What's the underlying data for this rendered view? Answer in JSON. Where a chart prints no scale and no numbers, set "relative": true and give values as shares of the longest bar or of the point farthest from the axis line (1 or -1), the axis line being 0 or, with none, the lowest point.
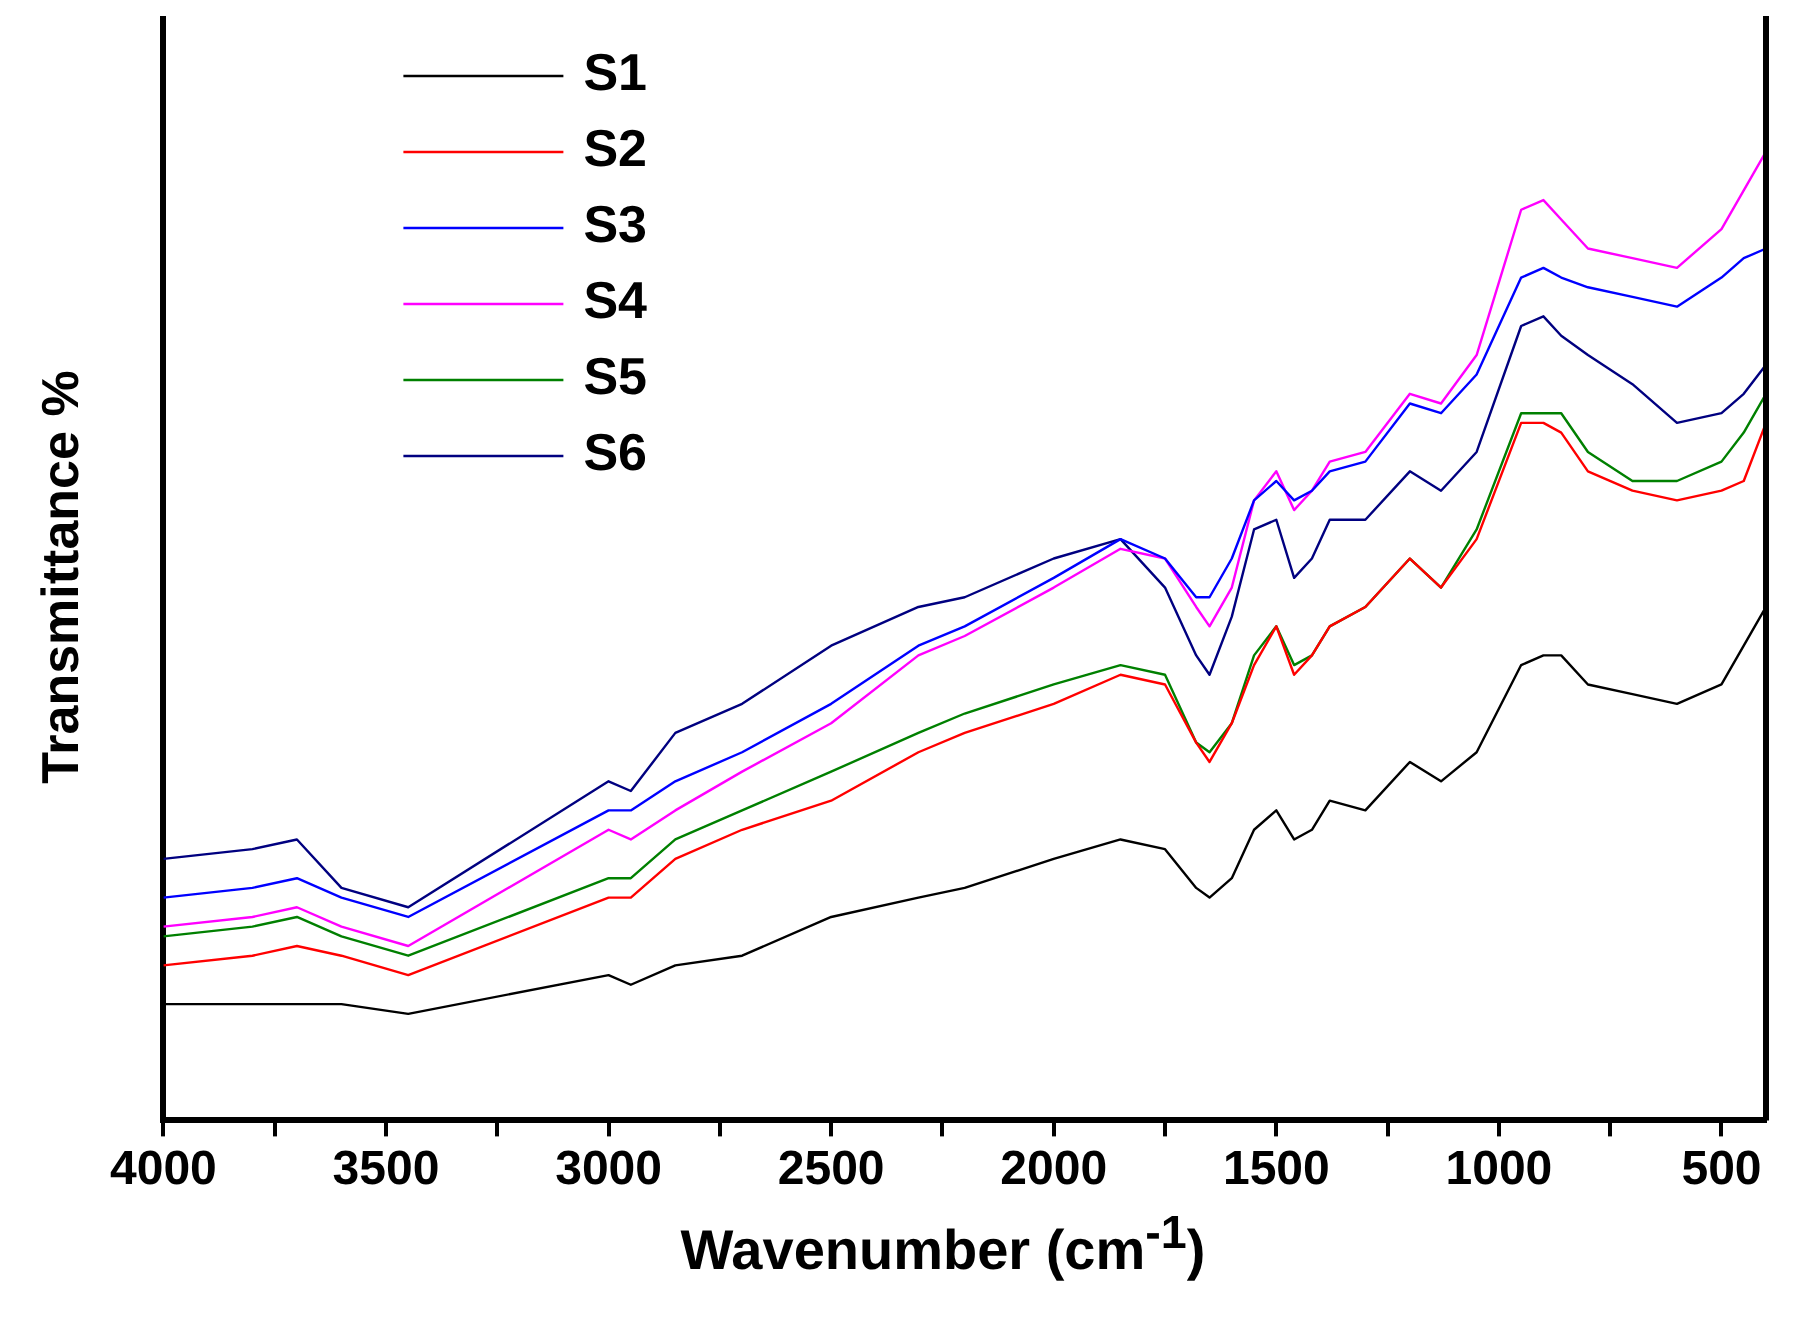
{
  "chart_data": {
    "type": "line",
    "xlabel": "Wavenumber (cm$^{-1}$)",
    "ylabel": "Transmittance %",
    "relative": true,
    "legend": "top left",
    "grid": false,
    "marker": "none",
    "line_style": "solid",
    "x": [
      4000,
      3800,
      3700,
      3600,
      3450,
      3000,
      2950,
      2850,
      2700,
      2500,
      2304,
      2200,
      2000,
      1850,
      1750,
      1680,
      1650,
      1600,
      1550,
      1500,
      1460,
      1420,
      1380,
      1300,
      1200,
      1130,
      1050,
      950,
      900,
      860,
      800,
      700,
      600,
      500,
      450,
      400
    ],
    "xlim": [
      4000,
      400
    ],
    "xticks": [
      4000,
      {
        "value": 3750,
        "label": null
      },
      3500,
      {
        "value": 3250,
        "label": null
      },
      3000,
      {
        "value": 2750,
        "label": null
      },
      2500,
      {
        "value": 2250,
        "label": null
      },
      2000,
      {
        "value": 1750,
        "label": null
      },
      1500,
      {
        "value": 1250,
        "label": null
      },
      1000,
      {
        "value": 750,
        "label": null
      },
      500
    ],
    "series": [
      {
        "name": "S1",
        "color": "#000000",
        "values": [
          0.12,
          0.12,
          0.12,
          0.12,
          0.11,
          0.15,
          0.14,
          0.16,
          0.17,
          0.21,
          0.23,
          0.24,
          0.27,
          0.29,
          0.28,
          0.24,
          0.23,
          0.25,
          0.3,
          0.32,
          0.29,
          0.3,
          0.33,
          0.32,
          0.37,
          0.35,
          0.38,
          0.47,
          0.48,
          0.48,
          0.45,
          0.44,
          0.43,
          0.45,
          0.49,
          0.53
        ]
      },
      {
        "name": "S2",
        "color": "#ff0000",
        "values": [
          0.16,
          0.17,
          0.18,
          0.17,
          0.15,
          0.23,
          0.23,
          0.27,
          0.3,
          0.33,
          0.38,
          0.4,
          0.43,
          0.46,
          0.45,
          0.39,
          0.37,
          0.41,
          0.47,
          0.51,
          0.46,
          0.48,
          0.51,
          0.53,
          0.58,
          0.55,
          0.6,
          0.72,
          0.72,
          0.71,
          0.67,
          0.65,
          0.64,
          0.65,
          0.66,
          0.72
        ]
      },
      {
        "name": "S3",
        "color": "#0000ff",
        "values": [
          0.23,
          0.24,
          0.25,
          0.23,
          0.21,
          0.32,
          0.32,
          0.35,
          0.38,
          0.43,
          0.49,
          0.51,
          0.56,
          0.6,
          0.58,
          0.54,
          0.54,
          0.58,
          0.64,
          0.66,
          0.64,
          0.65,
          0.67,
          0.68,
          0.74,
          0.73,
          0.77,
          0.87,
          0.88,
          0.87,
          0.86,
          0.85,
          0.84,
          0.87,
          0.89,
          0.9
        ]
      },
      {
        "name": "S4",
        "color": "#ff00ff",
        "values": [
          0.2,
          0.21,
          0.22,
          0.2,
          0.18,
          0.3,
          0.29,
          0.32,
          0.36,
          0.41,
          0.48,
          0.5,
          0.55,
          0.59,
          0.58,
          0.53,
          0.51,
          0.55,
          0.64,
          0.67,
          0.63,
          0.65,
          0.68,
          0.69,
          0.75,
          0.74,
          0.79,
          0.94,
          0.95,
          0.93,
          0.9,
          0.89,
          0.88,
          0.92,
          0.96,
          1
        ]
      },
      {
        "name": "S5",
        "color": "#008000",
        "values": [
          0.19,
          0.2,
          0.21,
          0.19,
          0.17,
          0.25,
          0.25,
          0.29,
          0.32,
          0.36,
          0.4,
          0.42,
          0.45,
          0.47,
          0.46,
          0.39,
          0.38,
          0.41,
          0.48,
          0.51,
          0.47,
          0.48,
          0.51,
          0.53,
          0.58,
          0.55,
          0.61,
          0.73,
          0.73,
          0.73,
          0.69,
          0.66,
          0.66,
          0.68,
          0.71,
          0.75
        ]
      },
      {
        "name": "S6",
        "color": "#000080",
        "values": [
          0.27,
          0.28,
          0.29,
          0.24,
          0.22,
          0.35,
          0.34,
          0.4,
          0.43,
          0.49,
          0.53,
          0.54,
          0.58,
          0.6,
          0.55,
          0.48,
          0.46,
          0.52,
          0.61,
          0.62,
          0.56,
          0.58,
          0.62,
          0.62,
          0.67,
          0.65,
          0.69,
          0.82,
          0.83,
          0.81,
          0.79,
          0.76,
          0.72,
          0.73,
          0.75,
          0.78
        ]
      }
    ]
  }
}
